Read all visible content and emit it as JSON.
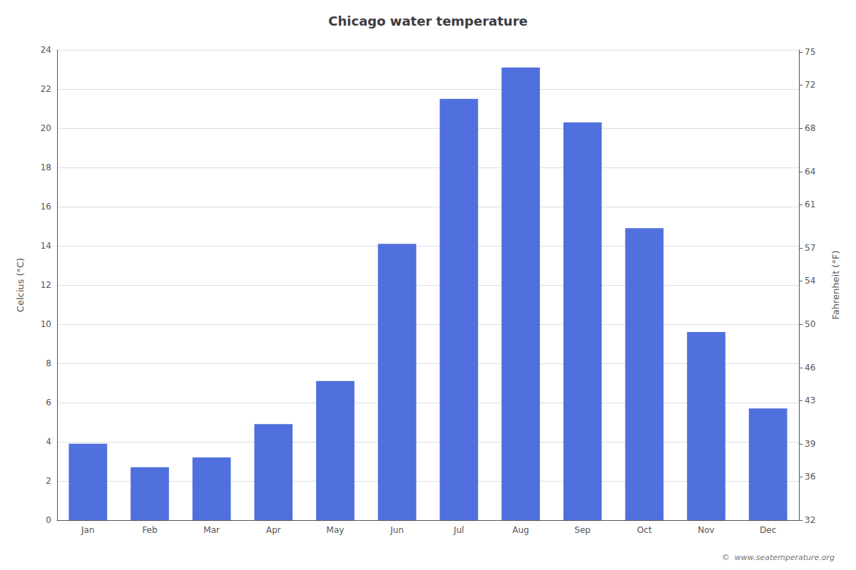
{
  "chart_data": {
    "type": "bar",
    "title": "Chicago water temperature",
    "categories": [
      "Jan",
      "Feb",
      "Mar",
      "Apr",
      "May",
      "Jun",
      "Jul",
      "Aug",
      "Sep",
      "Oct",
      "Nov",
      "Dec"
    ],
    "values": [
      3.9,
      2.7,
      3.2,
      4.9,
      7.1,
      14.1,
      21.5,
      23.1,
      20.3,
      14.9,
      9.6,
      5.7
    ],
    "ylabel": "Celcius (°C)",
    "ylim": [
      0,
      24
    ],
    "yticks": [
      0,
      2,
      4,
      6,
      8,
      10,
      12,
      14,
      16,
      18,
      20,
      22,
      24
    ],
    "y2label": "Fahrenheit (°F)",
    "y2lim": [
      32,
      75.2
    ],
    "y2ticks": [
      32,
      36,
      39,
      43,
      46,
      50,
      54,
      57,
      61,
      64,
      68,
      72,
      75
    ],
    "annotation": "©  www.seatemperature.org",
    "grid": true
  }
}
